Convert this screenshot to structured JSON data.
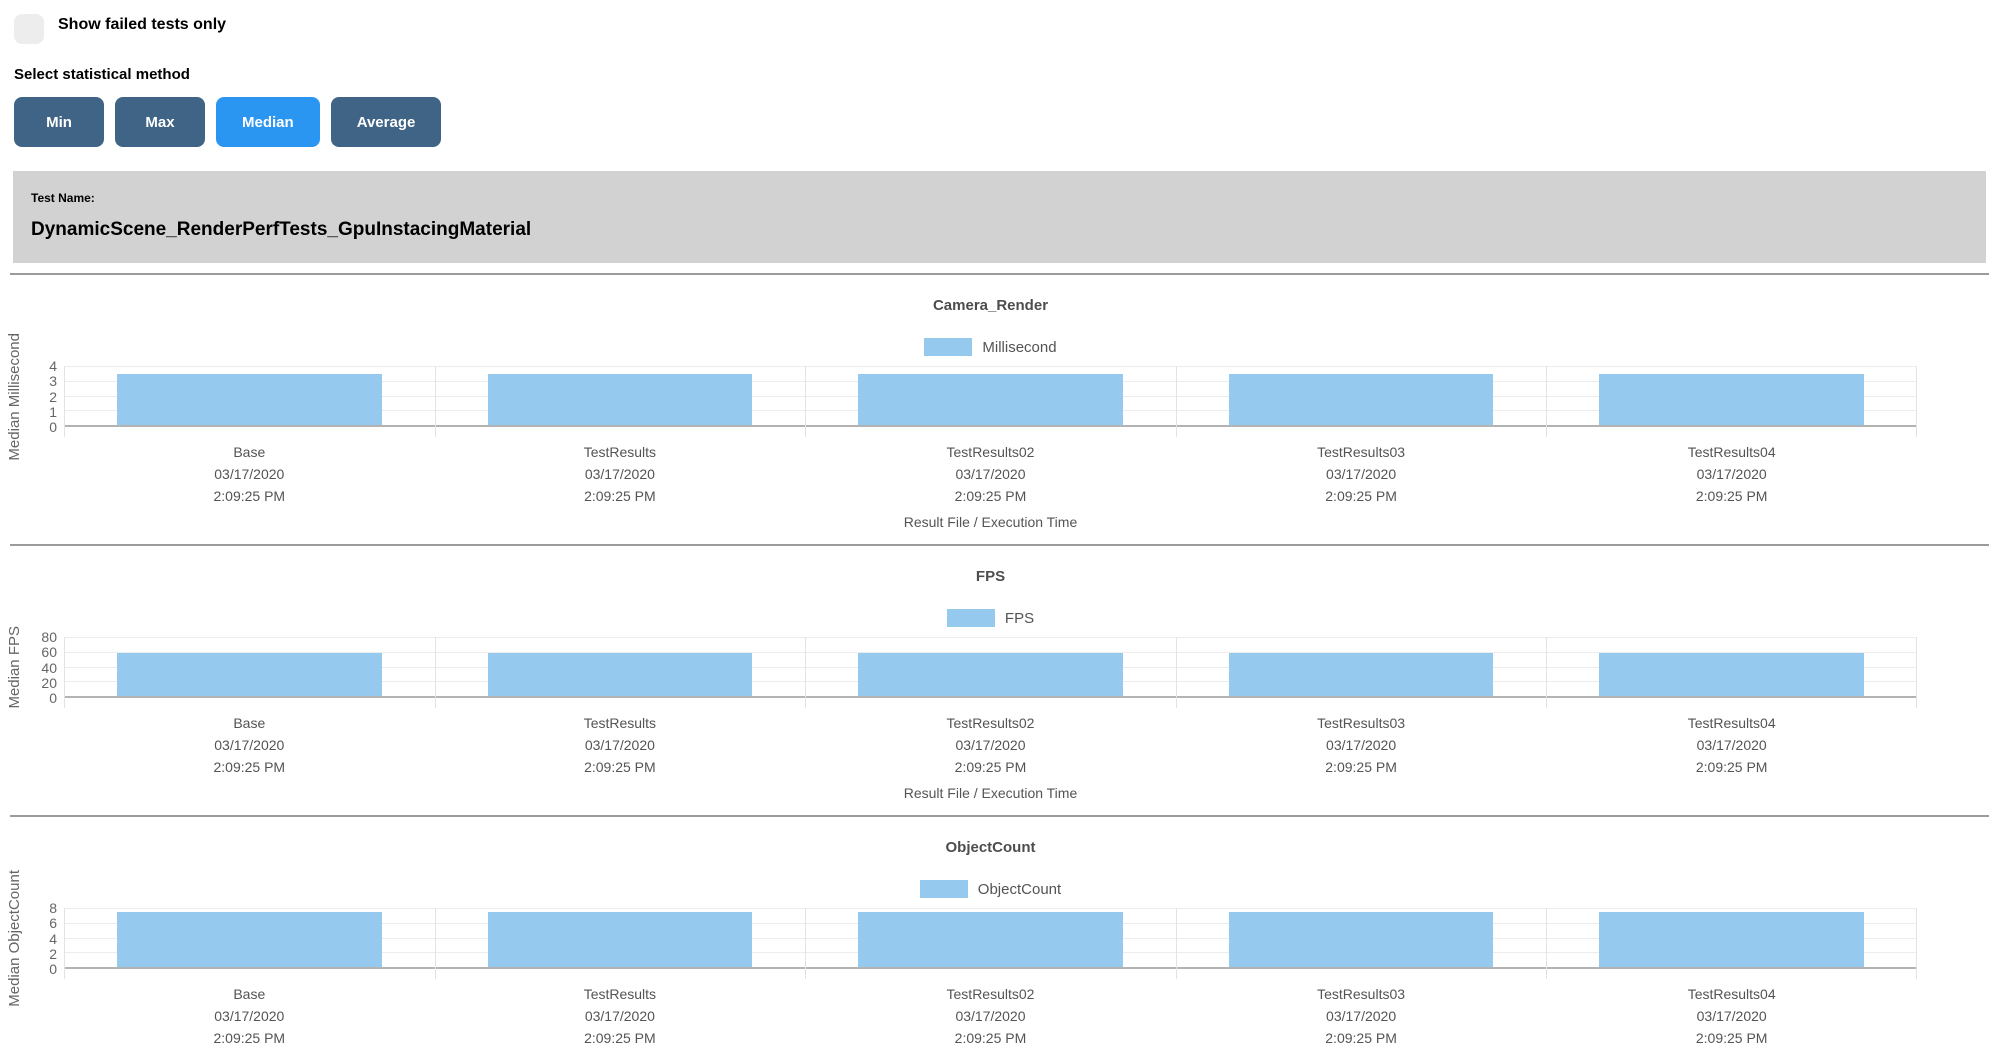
{
  "controls": {
    "show_failed_label": "Show failed tests only",
    "show_failed_checked": false,
    "stat_method_label": "Select statistical method",
    "buttons": [
      {
        "label": "Min",
        "active": false
      },
      {
        "label": "Max",
        "active": false
      },
      {
        "label": "Median",
        "active": true
      },
      {
        "label": "Average",
        "active": false
      }
    ]
  },
  "test_banner": {
    "label": "Test Name:",
    "name": "DynamicScene_RenderPerfTests_GpuInstacingMaterial"
  },
  "chart_data": [
    {
      "type": "bar",
      "title": "Camera_Render",
      "legend": "Millisecond",
      "ylabel": "Median Millisecond",
      "xlabel": "Result File / Execution Time",
      "ylim": [
        0,
        4
      ],
      "yticks": [
        0,
        1,
        2,
        3,
        4
      ],
      "categories": [
        {
          "name": "Base",
          "date": "03/17/2020",
          "time": "2:09:25 PM"
        },
        {
          "name": "TestResults",
          "date": "03/17/2020",
          "time": "2:09:25 PM"
        },
        {
          "name": "TestResults02",
          "date": "03/17/2020",
          "time": "2:09:25 PM"
        },
        {
          "name": "TestResults03",
          "date": "03/17/2020",
          "time": "2:09:25 PM"
        },
        {
          "name": "TestResults04",
          "date": "03/17/2020",
          "time": "2:09:25 PM"
        }
      ],
      "values": [
        3.45,
        3.45,
        3.45,
        3.45,
        3.45
      ],
      "grid": true,
      "legend_position": "top"
    },
    {
      "type": "bar",
      "title": "FPS",
      "legend": "FPS",
      "ylabel": "Median FPS",
      "xlabel": "Result File / Execution Time",
      "ylim": [
        0,
        80
      ],
      "yticks": [
        0,
        20,
        40,
        60,
        80
      ],
      "categories": [
        {
          "name": "Base",
          "date": "03/17/2020",
          "time": "2:09:25 PM"
        },
        {
          "name": "TestResults",
          "date": "03/17/2020",
          "time": "2:09:25 PM"
        },
        {
          "name": "TestResults02",
          "date": "03/17/2020",
          "time": "2:09:25 PM"
        },
        {
          "name": "TestResults03",
          "date": "03/17/2020",
          "time": "2:09:25 PM"
        },
        {
          "name": "TestResults04",
          "date": "03/17/2020",
          "time": "2:09:25 PM"
        }
      ],
      "values": [
        58,
        58,
        58,
        58,
        58
      ],
      "grid": true,
      "legend_position": "top"
    },
    {
      "type": "bar",
      "title": "ObjectCount",
      "legend": "ObjectCount",
      "ylabel": "Median ObjectCount",
      "xlabel": "",
      "ylim": [
        0,
        8
      ],
      "yticks": [
        0,
        2,
        4,
        6,
        8
      ],
      "categories": [
        {
          "name": "Base",
          "date": "03/17/2020",
          "time": "2:09:25 PM"
        },
        {
          "name": "TestResults",
          "date": "03/17/2020",
          "time": "2:09:25 PM"
        },
        {
          "name": "TestResults02",
          "date": "03/17/2020",
          "time": "2:09:25 PM"
        },
        {
          "name": "TestResults03",
          "date": "03/17/2020",
          "time": "2:09:25 PM"
        },
        {
          "name": "TestResults04",
          "date": "03/17/2020",
          "time": "2:09:25 PM"
        }
      ],
      "values": [
        7.5,
        7.5,
        7.5,
        7.5,
        7.5
      ],
      "grid": true,
      "legend_position": "top"
    }
  ],
  "colors": {
    "bar": "#96c9ee",
    "button_bg": "#3f6485",
    "button_active_bg": "#2b96f2",
    "banner_bg": "#d2d2d2",
    "divider": "#9b9b9b",
    "grid_line": "#ececec",
    "axis_line": "#b3b3b3",
    "vline": "#e3e3e3",
    "axis_text": "#666666",
    "label_text": "#545454"
  }
}
